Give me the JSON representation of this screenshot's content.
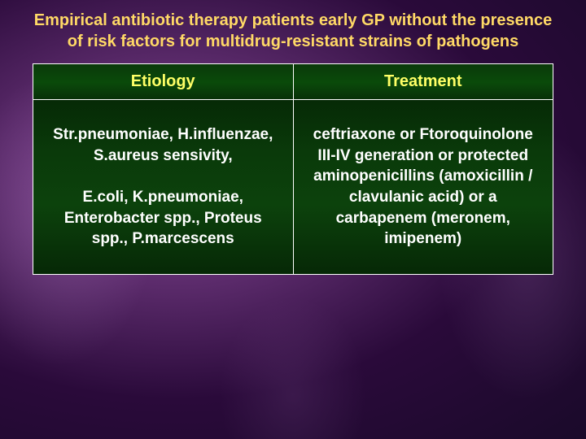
{
  "title": "Empirical antibiotic therapy patients early GP without the presence of risk factors for multidrug-resistant strains of pathogens",
  "title_color": "#ffd966",
  "title_fontsize": 20,
  "table": {
    "border_color": "#ffffff",
    "header_bg_start": "#0a3a0a",
    "header_bg_end": "#083008",
    "header_text_color": "#ffff66",
    "header_fontsize": 20,
    "cell_bg_start": "#062a06",
    "cell_bg_end": "#062806",
    "cell_text_color": "#ffffff",
    "cell_fontsize": 19,
    "columns": [
      "Etiology",
      "Treatment"
    ],
    "rows": [
      {
        "etiology": "Str.pneumoniae, H.influenzae, S.aureus sensivity,\nE.coli, K.pneumoniae, Enterobacter spp., Proteus spp., P.marcescens",
        "treatment": "ceftriaxone or Ftoroquinolone III-IV generation or protected aminopenicillins (amoxicillin / clavulanic acid) or a carbapenem (meronem, imipenem)"
      }
    ]
  },
  "background": {
    "base_colors": [
      "#8a4a9a",
      "#5a2a6a",
      "#2a0a3a",
      "#1a0a2a"
    ]
  }
}
